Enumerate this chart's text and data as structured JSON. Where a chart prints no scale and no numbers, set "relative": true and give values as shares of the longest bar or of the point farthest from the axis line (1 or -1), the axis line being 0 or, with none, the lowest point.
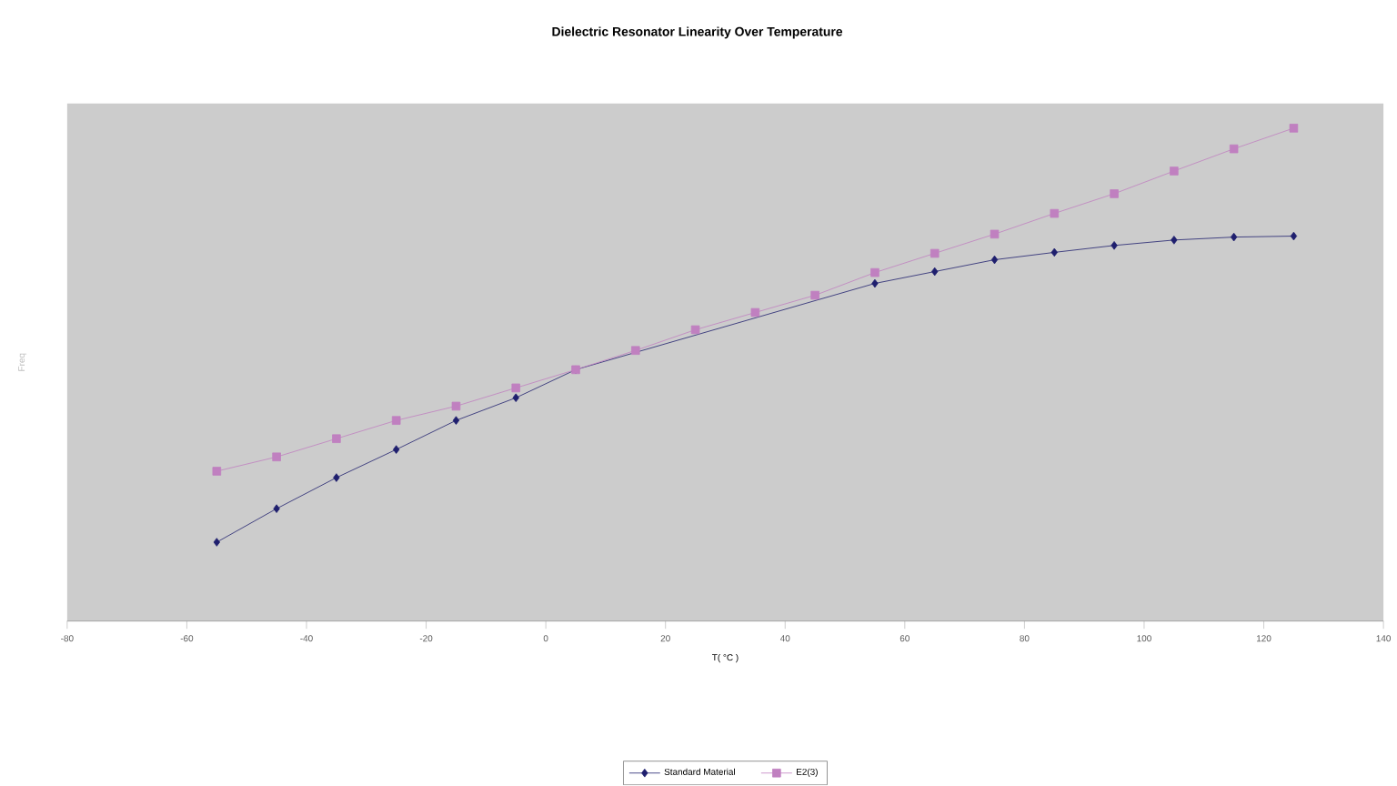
{
  "chart_data": {
    "type": "line",
    "title": "Dielectric Resonator Linearity Over Temperature",
    "xlabel": "T( °C )",
    "ylabel": "Freq",
    "relative": true,
    "x": [
      -55,
      -45,
      -35,
      -25,
      -15,
      -5,
      5,
      15,
      25,
      35,
      45,
      55,
      65,
      75,
      85,
      95,
      105,
      115,
      125
    ],
    "series": [
      {
        "name": "Standard Material",
        "color": "#1f1f6e",
        "marker": "diamond",
        "values": [
          0.16,
          0.228,
          0.291,
          0.348,
          0.407,
          0.453,
          0.51,
          null,
          null,
          null,
          null,
          0.685,
          0.709,
          0.733,
          0.748,
          0.762,
          0.773,
          0.779,
          0.781
        ]
      },
      {
        "name": "E2(3)",
        "color": "#c080c0",
        "marker": "square",
        "values": [
          0.304,
          0.333,
          0.37,
          0.407,
          0.436,
          0.473,
          0.51,
          0.549,
          0.591,
          0.626,
          0.661,
          0.707,
          0.746,
          0.785,
          0.827,
          0.867,
          0.913,
          0.958,
          1
        ]
      }
    ],
    "xlim": [
      -80,
      140
    ],
    "xticks": [
      -80,
      -60,
      -40,
      -20,
      0,
      20,
      40,
      60,
      80,
      100,
      120,
      140
    ],
    "grid": false,
    "legend": "bottom",
    "line_style": "solid"
  }
}
